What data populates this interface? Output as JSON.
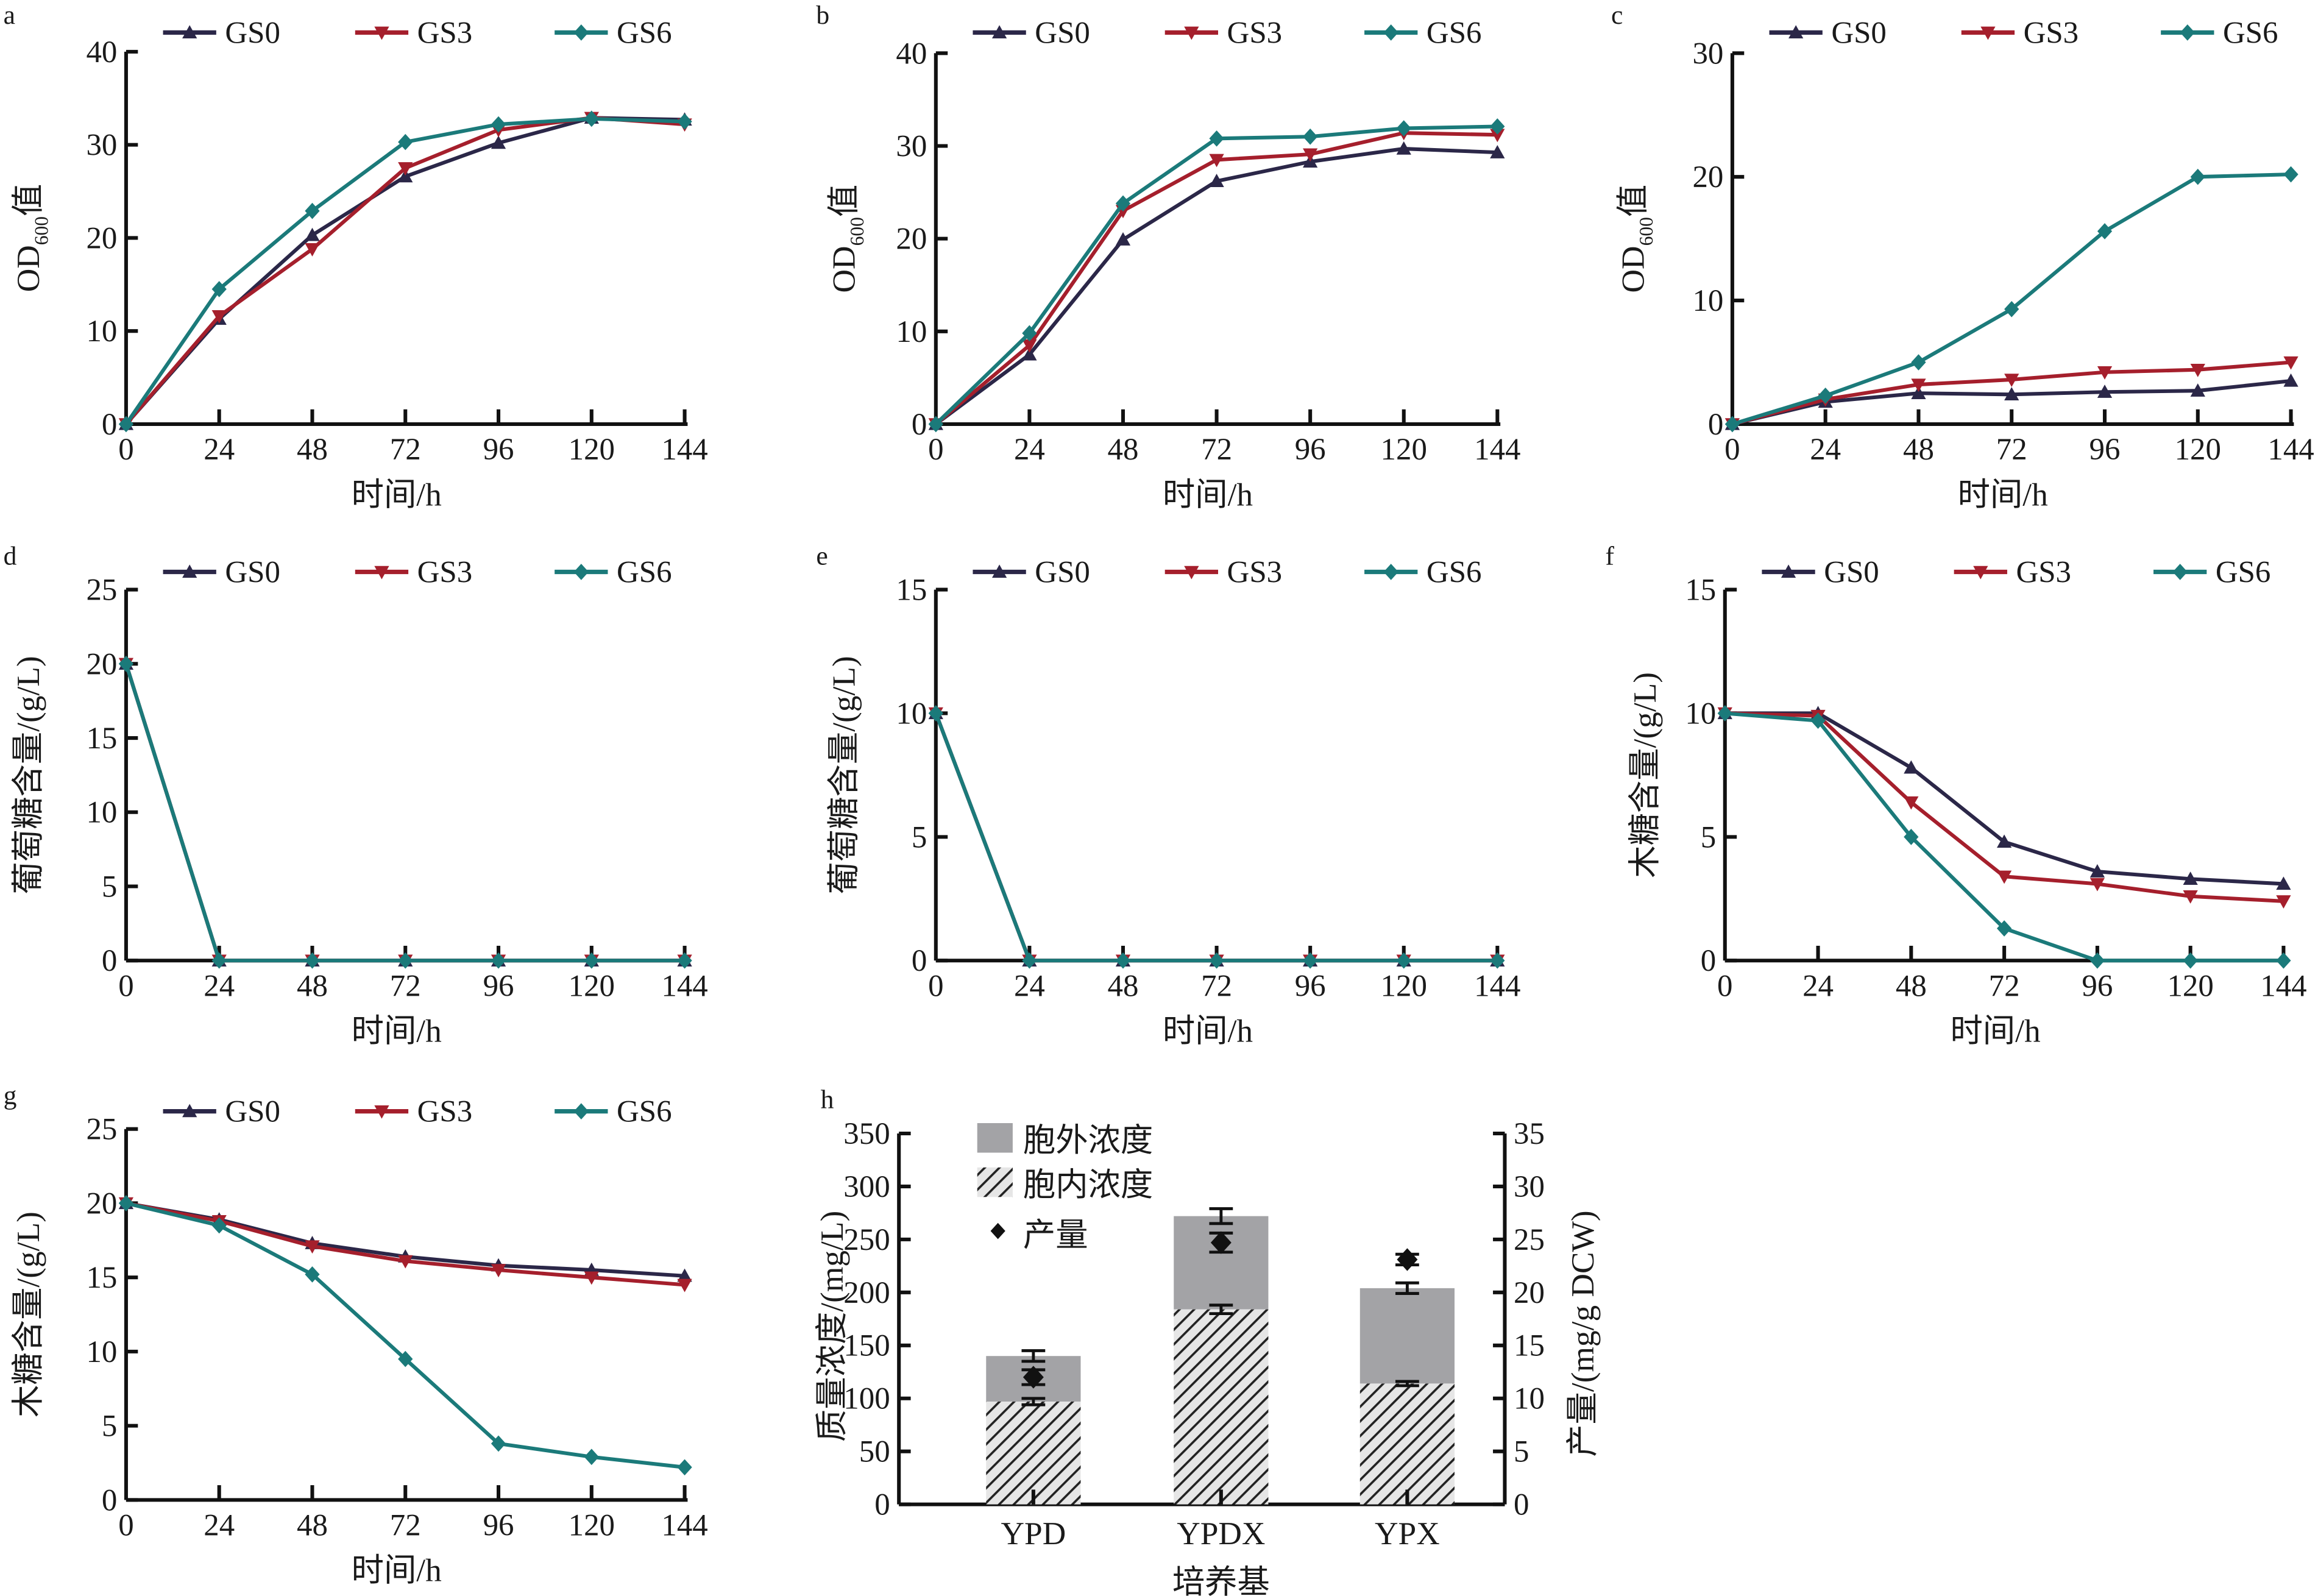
{
  "colors": {
    "GS0": "#2b2748",
    "GS3": "#a51f2c",
    "GS6": "#1b7a7a",
    "extracellular": "#a3a3a6",
    "axis": "#111111"
  },
  "chart_data": [
    {
      "panel": "a",
      "type": "line",
      "xlabel": "时间/h",
      "ylabel": {
        "main": "OD",
        "sub": "600",
        "suffix": "值"
      },
      "x": [
        0,
        24,
        48,
        72,
        96,
        120,
        144
      ],
      "xlim": [
        0,
        144
      ],
      "ylim": [
        0,
        40
      ],
      "yticks": [
        0,
        10,
        20,
        30,
        40
      ],
      "legend": "top",
      "series": [
        {
          "name": "GS0",
          "marker": "triangle-up",
          "values": [
            0,
            11.3,
            20.3,
            26.6,
            30.2,
            32.9,
            32.7
          ]
        },
        {
          "name": "GS3",
          "marker": "triangle-down",
          "values": [
            0,
            11.6,
            18.8,
            27.5,
            31.6,
            32.9,
            32.2
          ]
        },
        {
          "name": "GS6",
          "marker": "diamond",
          "values": [
            0,
            14.5,
            22.9,
            30.3,
            32.2,
            32.8,
            32.5
          ]
        }
      ]
    },
    {
      "panel": "b",
      "type": "line",
      "xlabel": "时间/h",
      "ylabel": {
        "main": "OD",
        "sub": "600",
        "suffix": "值"
      },
      "x": [
        0,
        24,
        48,
        72,
        96,
        120,
        144
      ],
      "xlim": [
        0,
        144
      ],
      "ylim": [
        0,
        40
      ],
      "yticks": [
        0,
        10,
        20,
        30,
        40
      ],
      "legend": "top",
      "series": [
        {
          "name": "GS0",
          "marker": "triangle-up",
          "values": [
            0,
            7.5,
            19.9,
            26.2,
            28.3,
            29.7,
            29.3
          ]
        },
        {
          "name": "GS3",
          "marker": "triangle-down",
          "values": [
            0,
            8.5,
            23.0,
            28.5,
            29.1,
            31.4,
            31.2
          ]
        },
        {
          "name": "GS6",
          "marker": "diamond",
          "values": [
            0,
            9.8,
            23.8,
            30.8,
            31.0,
            31.9,
            32.1
          ]
        }
      ]
    },
    {
      "panel": "c",
      "type": "line",
      "xlabel": "时间/h",
      "ylabel": {
        "main": "OD",
        "sub": "600",
        "suffix": "值"
      },
      "x": [
        0,
        24,
        48,
        72,
        96,
        120,
        144
      ],
      "xlim": [
        0,
        144
      ],
      "ylim": [
        0,
        30
      ],
      "yticks": [
        0,
        10,
        20,
        30
      ],
      "legend": "top",
      "series": [
        {
          "name": "GS0",
          "marker": "triangle-up",
          "values": [
            0,
            1.8,
            2.5,
            2.4,
            2.6,
            2.7,
            3.5
          ]
        },
        {
          "name": "GS3",
          "marker": "triangle-down",
          "values": [
            0,
            2.0,
            3.2,
            3.6,
            4.2,
            4.4,
            5.0
          ]
        },
        {
          "name": "GS6",
          "marker": "diamond",
          "values": [
            0,
            2.3,
            5.0,
            9.3,
            15.6,
            20.0,
            20.2
          ]
        }
      ]
    },
    {
      "panel": "d",
      "type": "line",
      "xlabel": "时间/h",
      "ylabel": {
        "main": "葡萄糖含量/(g/L)"
      },
      "x": [
        0,
        24,
        48,
        72,
        96,
        120,
        144
      ],
      "xlim": [
        0,
        144
      ],
      "ylim": [
        0,
        25
      ],
      "yticks": [
        0,
        5,
        10,
        15,
        20,
        25
      ],
      "legend": "top",
      "series": [
        {
          "name": "GS0",
          "marker": "triangle-up",
          "values": [
            20,
            0,
            0,
            0,
            0,
            0,
            0
          ]
        },
        {
          "name": "GS3",
          "marker": "triangle-down",
          "values": [
            20,
            0,
            0,
            0,
            0,
            0,
            0
          ]
        },
        {
          "name": "GS6",
          "marker": "diamond",
          "values": [
            20,
            0,
            0,
            0,
            0,
            0,
            0
          ]
        }
      ]
    },
    {
      "panel": "e",
      "type": "line",
      "xlabel": "时间/h",
      "ylabel": {
        "main": "葡萄糖含量/(g/L)"
      },
      "x": [
        0,
        24,
        48,
        72,
        96,
        120,
        144
      ],
      "xlim": [
        0,
        144
      ],
      "ylim": [
        0,
        15
      ],
      "yticks": [
        0,
        5,
        10,
        15
      ],
      "legend": "top",
      "series": [
        {
          "name": "GS0",
          "marker": "triangle-up",
          "values": [
            10,
            0,
            0,
            0,
            0,
            0,
            0
          ]
        },
        {
          "name": "GS3",
          "marker": "triangle-down",
          "values": [
            10,
            0,
            0,
            0,
            0,
            0,
            0
          ]
        },
        {
          "name": "GS6",
          "marker": "diamond",
          "values": [
            10,
            0,
            0,
            0,
            0,
            0,
            0
          ]
        }
      ]
    },
    {
      "panel": "f",
      "type": "line",
      "xlabel": "时间/h",
      "ylabel": {
        "main": "木糖含量/(g/L)"
      },
      "x": [
        0,
        24,
        48,
        72,
        96,
        120,
        144
      ],
      "xlim": [
        0,
        144
      ],
      "ylim": [
        0,
        15
      ],
      "yticks": [
        0,
        5,
        10,
        15
      ],
      "legend": "top",
      "series": [
        {
          "name": "GS0",
          "marker": "triangle-up",
          "values": [
            10,
            10,
            7.8,
            4.8,
            3.6,
            3.3,
            3.1
          ]
        },
        {
          "name": "GS3",
          "marker": "triangle-down",
          "values": [
            10,
            9.9,
            6.4,
            3.4,
            3.1,
            2.6,
            2.4
          ]
        },
        {
          "name": "GS6",
          "marker": "diamond",
          "values": [
            10,
            9.7,
            5.0,
            1.3,
            0,
            0,
            0
          ]
        }
      ]
    },
    {
      "panel": "g",
      "type": "line",
      "xlabel": "时间/h",
      "ylabel": {
        "main": "木糖含量/(g/L)"
      },
      "x": [
        0,
        24,
        48,
        72,
        96,
        120,
        144
      ],
      "xlim": [
        0,
        144
      ],
      "ylim": [
        0,
        25
      ],
      "yticks": [
        0,
        5,
        10,
        15,
        20,
        25
      ],
      "legend": "top",
      "series": [
        {
          "name": "GS0",
          "marker": "triangle-up",
          "values": [
            20,
            18.9,
            17.3,
            16.4,
            15.8,
            15.5,
            15.1
          ]
        },
        {
          "name": "GS3",
          "marker": "triangle-down",
          "values": [
            20,
            18.8,
            17.1,
            16.1,
            15.5,
            15.0,
            14.5
          ]
        },
        {
          "name": "GS6",
          "marker": "diamond",
          "values": [
            20,
            18.5,
            15.2,
            9.5,
            3.8,
            2.9,
            2.2
          ]
        }
      ]
    },
    {
      "panel": "h",
      "type": "bar",
      "xlabel": "培养基",
      "ylabel": "质量浓度/(mg/L)",
      "y2label": "产量/(mg/g DCW)",
      "categories": [
        "YPD",
        "YPDX",
        "YPX"
      ],
      "ylim": [
        0,
        350
      ],
      "yticks": [
        0,
        50,
        100,
        150,
        200,
        250,
        300,
        350
      ],
      "y2lim": [
        0,
        35
      ],
      "y2ticks": [
        0,
        5,
        10,
        15,
        20,
        25,
        30,
        35
      ],
      "legend": "top-left",
      "series": [
        {
          "name": "胞外浓度",
          "stacked_total": [
            140,
            272,
            204
          ],
          "error": [
            5,
            7,
            5
          ]
        },
        {
          "name": "胞内浓度",
          "values": [
            97,
            184,
            114
          ],
          "error": [
            3,
            4,
            2
          ]
        },
        {
          "name": "产量",
          "axis": "right",
          "values": [
            12.0,
            24.7,
            23.1
          ],
          "error": [
            0.7,
            0.9,
            0.5
          ]
        }
      ]
    }
  ]
}
